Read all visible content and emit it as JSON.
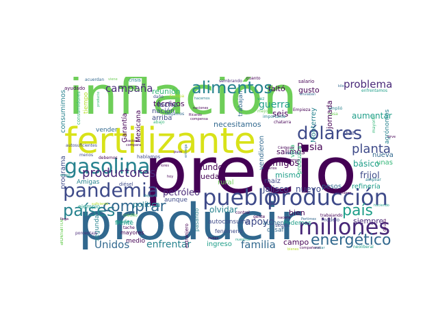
{
  "palette": [
    "#440154",
    "#482878",
    "#3e4a89",
    "#31688e",
    "#26828e",
    "#1f9e89",
    "#35b779",
    "#6ece58",
    "#b5de2b",
    "#fde725"
  ],
  "words": [
    {
      "text": "producir",
      "color": "#31688e"
    },
    {
      "text": "precio",
      "color": "#440154"
    },
    {
      "text": "inflación",
      "color": "#6ece58"
    },
    {
      "text": "fertilizante",
      "color": "#d8e219"
    },
    {
      "text": "pueblo",
      "color": "#3e4a89"
    },
    {
      "text": "producción",
      "color": "#3e4a89"
    },
    {
      "text": "millones",
      "color": "#482878"
    },
    {
      "text": "pandemia",
      "color": "#3e4a89"
    },
    {
      "text": "gasolina",
      "color": "#26828e"
    },
    {
      "text": "dólares",
      "color": "#3e4a89"
    },
    {
      "text": "alimentos",
      "color": "#26828e"
    },
    {
      "text": "países",
      "color": "#26828e"
    },
    {
      "text": "comprar",
      "color": "#31688e"
    },
    {
      "text": "energético",
      "color": "#31688e"
    },
    {
      "text": "país",
      "color": "#1f9e89"
    },
    {
      "text": "productores",
      "color": "#482878"
    },
    {
      "text": "planta",
      "color": "#3e4a89"
    },
    {
      "text": "problema",
      "color": "#482878"
    },
    {
      "text": "campaña",
      "color": "#482878"
    },
    {
      "text": "Unidos",
      "color": "#31688e"
    },
    {
      "text": "familia",
      "color": "#31688e"
    },
    {
      "text": "enfrentar",
      "color": "#26828e"
    },
    {
      "text": "apoyo",
      "color": "#3e4a89"
    },
    {
      "text": "Rusia",
      "color": "#440154"
    },
    {
      "text": "guerra",
      "color": "#1f9e89"
    },
    {
      "text": "amigos",
      "color": "#440154"
    },
    {
      "text": "petróleo",
      "color": "#482878"
    },
    {
      "text": "mundo",
      "color": "#440154"
    },
    {
      "text": "nuevo",
      "color": "#3e4a89"
    },
    {
      "text": "Jalisco",
      "color": "#3e4a89"
    },
    {
      "text": "olvidar",
      "color": "#26828e"
    },
    {
      "text": "necesitamos",
      "color": "#31688e"
    },
    {
      "text": "frijol",
      "color": "#3e4a89"
    },
    {
      "text": "básico",
      "color": "#1f9e89"
    },
    {
      "text": "aumentar",
      "color": "#1f9e89"
    },
    {
      "text": "jornada",
      "color": "#440154"
    },
    {
      "text": "Monterrey",
      "color": "#26828e"
    },
    {
      "text": "seis",
      "color": "#440154"
    },
    {
      "text": "técnicos",
      "color": "#440154"
    },
    {
      "text": "reunión",
      "color": "#35b779"
    },
    {
      "text": "leche",
      "color": "#3e4a89"
    },
    {
      "text": "nación",
      "color": "#3e4a89"
    },
    {
      "text": "arriba",
      "color": "#3e4a89"
    },
    {
      "text": "Garantía",
      "color": "#440154"
    },
    {
      "text": "Mexicana",
      "color": "#440154"
    },
    {
      "text": "política",
      "color": "#26828e"
    },
    {
      "text": "programa",
      "color": "#3e4a89"
    },
    {
      "text": "consumimos",
      "color": "#26828e"
    },
    {
      "text": "adelante",
      "color": "#6ece58"
    },
    {
      "text": "campo",
      "color": "#440154"
    },
    {
      "text": "bien",
      "color": "#440154"
    },
    {
      "text": "siempre",
      "color": "#482878"
    },
    {
      "text": "refinería",
      "color": "#1f9e89"
    },
    {
      "text": "pesos",
      "color": "#31688e"
    },
    {
      "text": "mismo",
      "color": "#1f9e89"
    },
    {
      "text": "salimos",
      "color": "#440154"
    },
    {
      "text": "gusto",
      "color": "#440154"
    },
    {
      "text": "faltó",
      "color": "#440154"
    },
    {
      "text": "vendieron",
      "color": "#31688e"
    },
    {
      "text": "produzca",
      "color": "#35b779"
    },
    {
      "text": "agrónomos",
      "color": "#26828e"
    },
    {
      "text": "ingreso",
      "color": "#1f9e89"
    },
    {
      "text": "autoconsumo",
      "color": "#3e4a89"
    },
    {
      "text": "aumenta",
      "color": "#31688e"
    },
    {
      "text": "Podemos",
      "color": "#1f9e89"
    },
    {
      "text": "pueda",
      "color": "#440154"
    },
    {
      "text": "rural",
      "color": "#6ece58"
    },
    {
      "text": "Amigas",
      "color": "#26828e"
    },
    {
      "text": "tiempo",
      "color": "#b5de2b"
    },
    {
      "text": "consumidores",
      "color": "#35b779"
    },
    {
      "text": "vender",
      "color": "#31688e"
    },
    {
      "text": "trabajan",
      "color": "#31688e"
    },
    {
      "text": "nueva",
      "color": "#31688e"
    },
    {
      "text": "unas",
      "color": "#35b779"
    },
    {
      "text": "dar",
      "color": "#3e4a89"
    },
    {
      "text": "vida",
      "color": "#35b779"
    },
    {
      "text": "maíz",
      "color": "#3e4a89"
    },
    {
      "text": "segunda",
      "color": "#26828e"
    },
    {
      "text": "mayores",
      "color": "#440154"
    },
    {
      "text": "medio",
      "color": "#440154"
    },
    {
      "text": "frente",
      "color": "#1f9e89"
    },
    {
      "text": "poder",
      "color": "#1f9e89"
    },
    {
      "text": "ejemplo",
      "color": "#1f9e89"
    },
    {
      "text": "aunque",
      "color": "#3e4a89"
    },
    {
      "text": "desafío",
      "color": "#31688e"
    },
    {
      "text": "fenómeno",
      "color": "#3e4a89"
    },
    {
      "text": "pasando",
      "color": "#26828e"
    },
    {
      "text": "extranjero",
      "color": "#440154"
    },
    {
      "text": "según",
      "color": "#3e4a89"
    },
    {
      "text": "modelo",
      "color": "#3e4a89"
    },
    {
      "text": "daño",
      "color": "#3e4a89"
    },
    {
      "text": "salario",
      "color": "#440154"
    },
    {
      "text": "Empieza",
      "color": "#440154"
    },
    {
      "text": "vez",
      "color": "#1f9e89"
    },
    {
      "text": "mayoría",
      "color": "#35b779"
    },
    {
      "text": "crisis",
      "color": "#26828e"
    },
    {
      "text": "ayudado",
      "color": "#440154"
    },
    {
      "text": "manera",
      "color": "#6ece58"
    },
    {
      "text": "Europa",
      "color": "#b5de2b"
    },
    {
      "text": "cuánto",
      "color": "#440154"
    },
    {
      "text": "sembrando",
      "color": "#482878"
    },
    {
      "text": "enfrentamos",
      "color": "#1f9e89"
    },
    {
      "text": "trabajando",
      "color": "#440154"
    },
    {
      "text": "ampliar",
      "color": "#26828e"
    },
    {
      "text": "amplió",
      "color": "#26828e"
    },
    {
      "text": "casa",
      "color": "#6ece58"
    },
    {
      "text": "importante",
      "color": "#26828e"
    },
    {
      "text": "chatarra",
      "color": "#440154"
    },
    {
      "text": "mejor",
      "color": "#6ece58"
    },
    {
      "text": "naciones",
      "color": "#440154"
    },
    {
      "text": "hablamos",
      "color": "#3e4a89"
    },
    {
      "text": "debemos",
      "color": "#440154"
    },
    {
      "text": "menos",
      "color": "#3e4a89"
    },
    {
      "text": "diésel",
      "color": "#3e4a89"
    },
    {
      "text": "control",
      "color": "#440154"
    },
    {
      "text": "crudo",
      "color": "#440154"
    },
    {
      "text": "gente",
      "color": "#440154"
    },
    {
      "text": "sembrar",
      "color": "#440154"
    },
    {
      "text": "deuda",
      "color": "#440154"
    },
    {
      "text": "neoliberal",
      "color": "#1f9e89"
    },
    {
      "text": "llegamos",
      "color": "#31688e"
    },
    {
      "text": "abajo",
      "color": "#35b779"
    },
    {
      "text": "Flores",
      "color": "#440154"
    },
    {
      "text": "Cárdenas",
      "color": "#440154"
    },
    {
      "text": "naranja",
      "color": "#31688e"
    },
    {
      "text": "agrarios",
      "color": "#440154"
    },
    {
      "text": "hacerle",
      "color": "#440154"
    },
    {
      "text": "Pertimex",
      "color": "#31688e"
    },
    {
      "text": "nuestros",
      "color": "#1f9e89"
    },
    {
      "text": "evitar",
      "color": "#26828e"
    },
    {
      "text": "compañeros",
      "color": "#440154"
    },
    {
      "text": "bienes",
      "color": "#b5de2b"
    },
    {
      "text": "tache",
      "color": "#440154"
    },
    {
      "text": "producto",
      "color": "#35b779"
    },
    {
      "text": "acuerdan",
      "color": "#31688e"
    },
    {
      "text": "viene",
      "color": "#6ece58"
    },
    {
      "text": "autosuficientes",
      "color": "#3e4a89"
    },
    {
      "text": "suficiente",
      "color": "#b5de2b"
    },
    {
      "text": "porcentaje",
      "color": "#482878"
    },
    {
      "text": "llega",
      "color": "#440154"
    },
    {
      "text": "causó",
      "color": "#1f9e89"
    },
    {
      "text": "nacional",
      "color": "#440154"
    },
    {
      "text": "compara",
      "color": "#440154"
    },
    {
      "text": "entrega",
      "color": "#31688e"
    },
    {
      "text": "Ricardo",
      "color": "#440154"
    },
    {
      "text": "compensa",
      "color": "#440154"
    },
    {
      "text": "enviaban",
      "color": "#31688e"
    },
    {
      "text": "sirve",
      "color": "#440154"
    },
    {
      "text": "haciendo",
      "color": "#1f9e89"
    },
    {
      "text": "hoy",
      "color": "#440154"
    },
    {
      "text": "iniciemos",
      "color": "#440154"
    },
    {
      "text": "dejaron",
      "color": "#26828e"
    },
    {
      "text": "puso",
      "color": "#440154"
    },
    {
      "text": "crédito",
      "color": "#6ece58"
    },
    {
      "text": "nubes",
      "color": "#440154"
    },
    {
      "text": "hacemos",
      "color": "#26828e"
    },
    {
      "text": "kilo",
      "color": "#31688e"
    }
  ]
}
